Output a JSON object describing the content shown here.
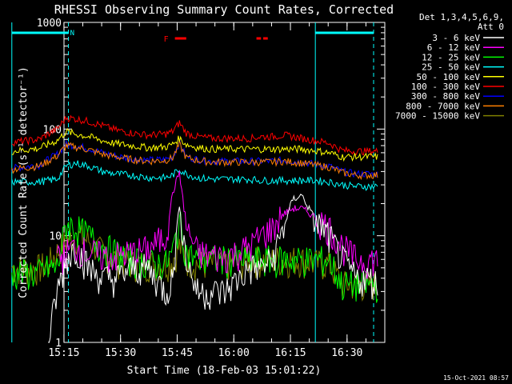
{
  "chart_data": {
    "type": "line",
    "title": "RHESSI Observing Summary Count Rates, Corrected",
    "xlabel": "Start Time (18-Feb-03 15:01:22)",
    "ylabel": "Corrected Count Rate (s⁻¹ detector⁻¹)",
    "yscale": "log",
    "ylim": [
      1,
      1000
    ],
    "xlim_minutes": [
      15.02,
      40.0
    ],
    "x_ticks": [
      {
        "t": 15.25,
        "label": "15:15"
      },
      {
        "t": 15.5,
        "label": "15:30"
      },
      {
        "t": 15.75,
        "label": "15:45"
      },
      {
        "t": 16.0,
        "label": "16:00"
      },
      {
        "t": 16.25,
        "label": "16:15"
      },
      {
        "t": 16.5,
        "label": "16:30"
      }
    ],
    "y_ticks": [
      {
        "v": 1,
        "label": "1"
      },
      {
        "v": 10,
        "label": "10"
      },
      {
        "v": 100,
        "label": "100"
      },
      {
        "v": 1000,
        "label": "1000"
      }
    ],
    "legend_header": [
      "Det 1,3,4,5,6,9,",
      "Att 0"
    ],
    "legend_position": "right",
    "series": [
      {
        "name": "3 - 6 keV",
        "color": "#ffffff",
        "x": [
          15.02,
          15.14,
          15.18,
          15.22,
          15.26,
          15.3,
          15.36,
          15.42,
          15.48,
          15.55,
          15.62,
          15.7,
          15.73,
          15.76,
          15.79,
          15.84,
          15.9,
          15.96,
          16.02,
          16.07,
          16.12,
          16.17,
          16.22,
          16.26,
          16.3,
          16.36,
          16.42,
          16.48,
          16.54,
          16.6,
          16.64
        ],
        "y": [
          null,
          null,
          1,
          3,
          6,
          8,
          5,
          4,
          4,
          5,
          5,
          3,
          4,
          20,
          6,
          3,
          3,
          3,
          4,
          5,
          5,
          6,
          12,
          22,
          24,
          14,
          10,
          6,
          4,
          4,
          3.5
        ]
      },
      {
        "name": "6 - 12 keV",
        "color": "#ff00ff",
        "x": [
          15.02,
          15.14,
          15.18,
          15.22,
          15.26,
          15.3,
          15.36,
          15.42,
          15.48,
          15.55,
          15.62,
          15.7,
          15.73,
          15.76,
          15.79,
          15.84,
          15.9,
          15.96,
          16.02,
          16.07,
          16.12,
          16.17,
          16.22,
          16.26,
          16.3,
          16.36,
          16.42,
          16.48,
          16.54,
          16.6,
          16.64
        ],
        "y": [
          null,
          null,
          null,
          6,
          7,
          8,
          7,
          6.5,
          6.5,
          7,
          7.5,
          10,
          25,
          40,
          12,
          7,
          6.5,
          6.5,
          7,
          8,
          10,
          12,
          16,
          18,
          18,
          15,
          12,
          8,
          6,
          6,
          6
        ]
      },
      {
        "name": "12 - 25 keV",
        "color": "#00ff00",
        "x": [
          15.02,
          15.14,
          15.18,
          15.22,
          15.26,
          15.3,
          15.36,
          15.42,
          15.48,
          15.55,
          15.62,
          15.7,
          15.73,
          15.76,
          15.79,
          15.84,
          15.9,
          15.96,
          16.02,
          16.07,
          16.12,
          16.17,
          16.22,
          16.26,
          16.3,
          16.36,
          16.42,
          16.48,
          16.54,
          16.6,
          16.64
        ],
        "y": [
          4.5,
          4.5,
          5,
          5,
          13,
          12,
          10,
          8,
          7,
          6,
          5.5,
          5.5,
          7,
          14,
          7,
          6,
          6,
          6,
          6,
          6,
          6,
          6,
          6,
          6,
          6,
          6,
          6,
          3.5,
          3.5,
          3.5,
          3.5
        ]
      },
      {
        "name": "25 - 50 keV",
        "color": "#00ffff",
        "x": [
          15.02,
          15.14,
          15.18,
          15.22,
          15.26,
          15.3,
          15.36,
          15.42,
          15.48,
          15.55,
          15.62,
          15.7,
          15.73,
          15.76,
          15.79,
          15.84,
          15.9,
          15.96,
          16.02,
          16.07,
          16.12,
          16.17,
          16.22,
          16.26,
          16.3,
          16.36,
          16.42,
          16.48,
          16.54,
          16.6,
          16.64
        ],
        "y": [
          32,
          32,
          33,
          34,
          45,
          48,
          45,
          40,
          38,
          37,
          35,
          35,
          37,
          42,
          38,
          35,
          34,
          34,
          34,
          34,
          33,
          33,
          33,
          33,
          33,
          33,
          32,
          30,
          29,
          29,
          29
        ]
      },
      {
        "name": "50 - 100 keV",
        "color": "#ffff00",
        "x": [
          15.02,
          15.14,
          15.18,
          15.22,
          15.26,
          15.3,
          15.36,
          15.42,
          15.48,
          15.55,
          15.62,
          15.7,
          15.73,
          15.76,
          15.79,
          15.84,
          15.9,
          15.96,
          16.02,
          16.07,
          16.12,
          16.17,
          16.22,
          16.26,
          16.3,
          16.36,
          16.42,
          16.48,
          16.54,
          16.6,
          16.64
        ],
        "y": [
          62,
          66,
          72,
          78,
          95,
          90,
          85,
          78,
          73,
          70,
          67,
          68,
          72,
          82,
          72,
          67,
          65,
          65,
          65,
          65,
          65,
          65,
          65,
          65,
          65,
          63,
          60,
          55,
          55,
          55,
          55
        ]
      },
      {
        "name": "100 - 300 keV",
        "color": "#ff0000",
        "x": [
          15.02,
          15.14,
          15.18,
          15.22,
          15.26,
          15.3,
          15.36,
          15.42,
          15.48,
          15.55,
          15.62,
          15.7,
          15.73,
          15.76,
          15.79,
          15.84,
          15.9,
          15.96,
          16.02,
          16.07,
          16.12,
          16.17,
          16.22,
          16.26,
          16.3,
          16.36,
          16.42,
          16.48,
          16.54,
          16.6,
          16.64
        ],
        "y": [
          75,
          80,
          90,
          100,
          128,
          125,
          118,
          108,
          98,
          92,
          88,
          90,
          95,
          115,
          92,
          85,
          82,
          82,
          82,
          82,
          85,
          85,
          88,
          85,
          82,
          78,
          74,
          63,
          62,
          62,
          62
        ]
      },
      {
        "name": "300 - 800 keV",
        "color": "#0000ff",
        "x": [
          15.02,
          15.14,
          15.18,
          15.22,
          15.26,
          15.3,
          15.36,
          15.42,
          15.48,
          15.55,
          15.62,
          15.7,
          15.73,
          15.76,
          15.79,
          15.84,
          15.9,
          15.96,
          16.02,
          16.07,
          16.12,
          16.17,
          16.22,
          16.26,
          16.3,
          16.36,
          16.42,
          16.48,
          16.54,
          16.6,
          16.64
        ],
        "y": [
          43,
          46,
          52,
          58,
          72,
          70,
          66,
          60,
          56,
          53,
          51,
          52,
          55,
          75,
          55,
          52,
          50,
          50,
          50,
          50,
          50,
          50,
          51,
          50,
          49,
          47,
          45,
          40,
          38,
          38,
          38
        ]
      },
      {
        "name": "800 - 7000 keV",
        "color": "#ff8000",
        "x": [
          15.02,
          15.14,
          15.18,
          15.22,
          15.26,
          15.3,
          15.36,
          15.42,
          15.48,
          15.55,
          15.62,
          15.7,
          15.73,
          15.76,
          15.79,
          15.84,
          15.9,
          15.96,
          16.02,
          16.07,
          16.12,
          16.17,
          16.22,
          16.26,
          16.3,
          16.36,
          16.42,
          16.48,
          16.54,
          16.6,
          16.64
        ],
        "y": [
          42,
          45,
          50,
          56,
          70,
          68,
          64,
          58,
          55,
          52,
          50,
          51,
          54,
          72,
          54,
          51,
          49,
          49,
          49,
          49,
          49,
          49,
          50,
          49,
          48,
          46,
          44,
          39,
          37,
          37,
          37
        ]
      },
      {
        "name": "7000 - 15000 keV",
        "color": "#808000",
        "x": [
          15.02,
          15.14,
          15.18,
          15.22,
          15.26,
          15.3,
          15.36,
          15.42,
          15.48,
          15.55,
          15.62,
          15.7,
          15.73,
          15.76,
          15.79,
          15.84,
          15.9,
          15.96,
          16.02,
          16.07,
          16.12,
          16.17,
          16.22,
          16.26,
          16.3,
          16.36,
          16.42,
          16.48,
          16.54,
          16.6,
          16.64
        ],
        "y": [
          5,
          5,
          5.5,
          7,
          9,
          10,
          9,
          7,
          6,
          5.5,
          5.5,
          5.5,
          6,
          8,
          6,
          5.5,
          5.5,
          5.5,
          5.5,
          6,
          6,
          6,
          6,
          6,
          6,
          5.5,
          5.5,
          3.5,
          3.5,
          3.5,
          3.5
        ]
      }
    ],
    "flags": {
      "night_label": "N",
      "flare_label": "F",
      "night_ranges": [
        [
          15.02,
          15.27
        ],
        [
          16.36,
          16.64
        ]
      ],
      "flare_ranges": [
        [
          15.74,
          15.79
        ],
        [
          16.1,
          16.12
        ],
        [
          16.13,
          16.15
        ]
      ],
      "night_color": "#00ffff",
      "flare_color": "#ff0000"
    },
    "timestamp": "15-Oct-2021 08:57"
  }
}
